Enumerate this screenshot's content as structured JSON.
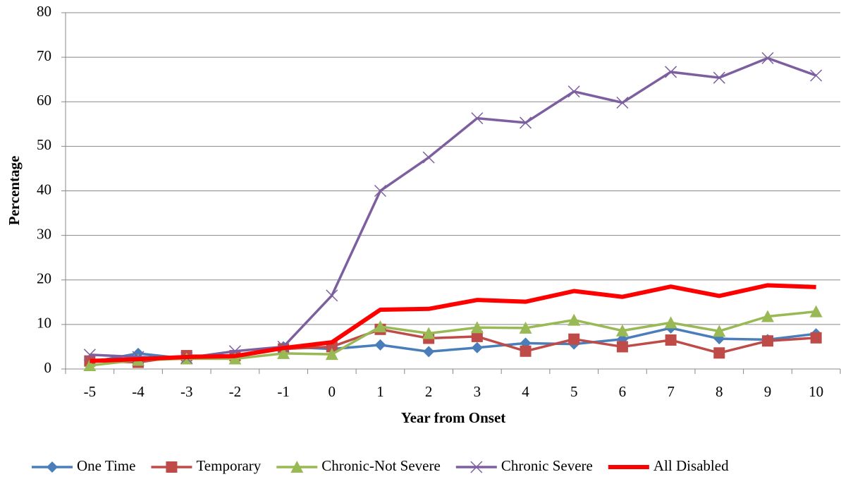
{
  "chart_data": {
    "type": "line",
    "x_label": "Year from Onset",
    "y_label": "Percentage",
    "categories": [
      "-5",
      "-4",
      "-3",
      "-2",
      "-1",
      "0",
      "1",
      "2",
      "3",
      "4",
      "5",
      "6",
      "7",
      "8",
      "9",
      "10"
    ],
    "ylim": [
      0,
      80
    ],
    "yticks": [
      0,
      10,
      20,
      30,
      40,
      50,
      60,
      70,
      80
    ],
    "grid": true,
    "legend": "bottom",
    "series": [
      {
        "name": "One Time",
        "color": "#4a7ebb",
        "marker": "diamond",
        "values": [
          1.5,
          3.5,
          2.3,
          3,
          5,
          4.5,
          5.4,
          3.9,
          4.8,
          5.8,
          5.6,
          6.7,
          9.2,
          6.8,
          6.6,
          7.9
        ]
      },
      {
        "name": "Temporary",
        "color": "#be4b48",
        "marker": "square",
        "values": [
          1.8,
          1.5,
          3,
          3,
          4.5,
          5,
          8.9,
          6.9,
          7.3,
          4,
          6.7,
          5,
          6.5,
          3.6,
          6.3,
          7
        ]
      },
      {
        "name": "Chronic-Not Severe",
        "color": "#98b954",
        "marker": "triangle",
        "values": [
          0.8,
          2,
          2.3,
          2.3,
          3.5,
          3.3,
          9.5,
          8,
          9.3,
          9.2,
          11,
          8.6,
          10.4,
          8.5,
          11.8,
          12.9
        ]
      },
      {
        "name": "Chronic Severe",
        "color": "#7d5fa0",
        "marker": "x",
        "values": [
          3.2,
          2.7,
          2.5,
          4,
          5,
          16.5,
          40,
          47.5,
          56.3,
          55.3,
          62.3,
          59.8,
          66.7,
          65.4,
          69.8,
          65.9
        ]
      },
      {
        "name": "All Disabled",
        "color": "#ff0000",
        "marker": "none",
        "width": 6,
        "values": [
          1.8,
          2.2,
          2.7,
          2.9,
          4.7,
          6,
          13.3,
          13.5,
          15.5,
          15.1,
          17.5,
          16.2,
          18.5,
          16.4,
          18.8,
          18.4
        ]
      }
    ]
  }
}
